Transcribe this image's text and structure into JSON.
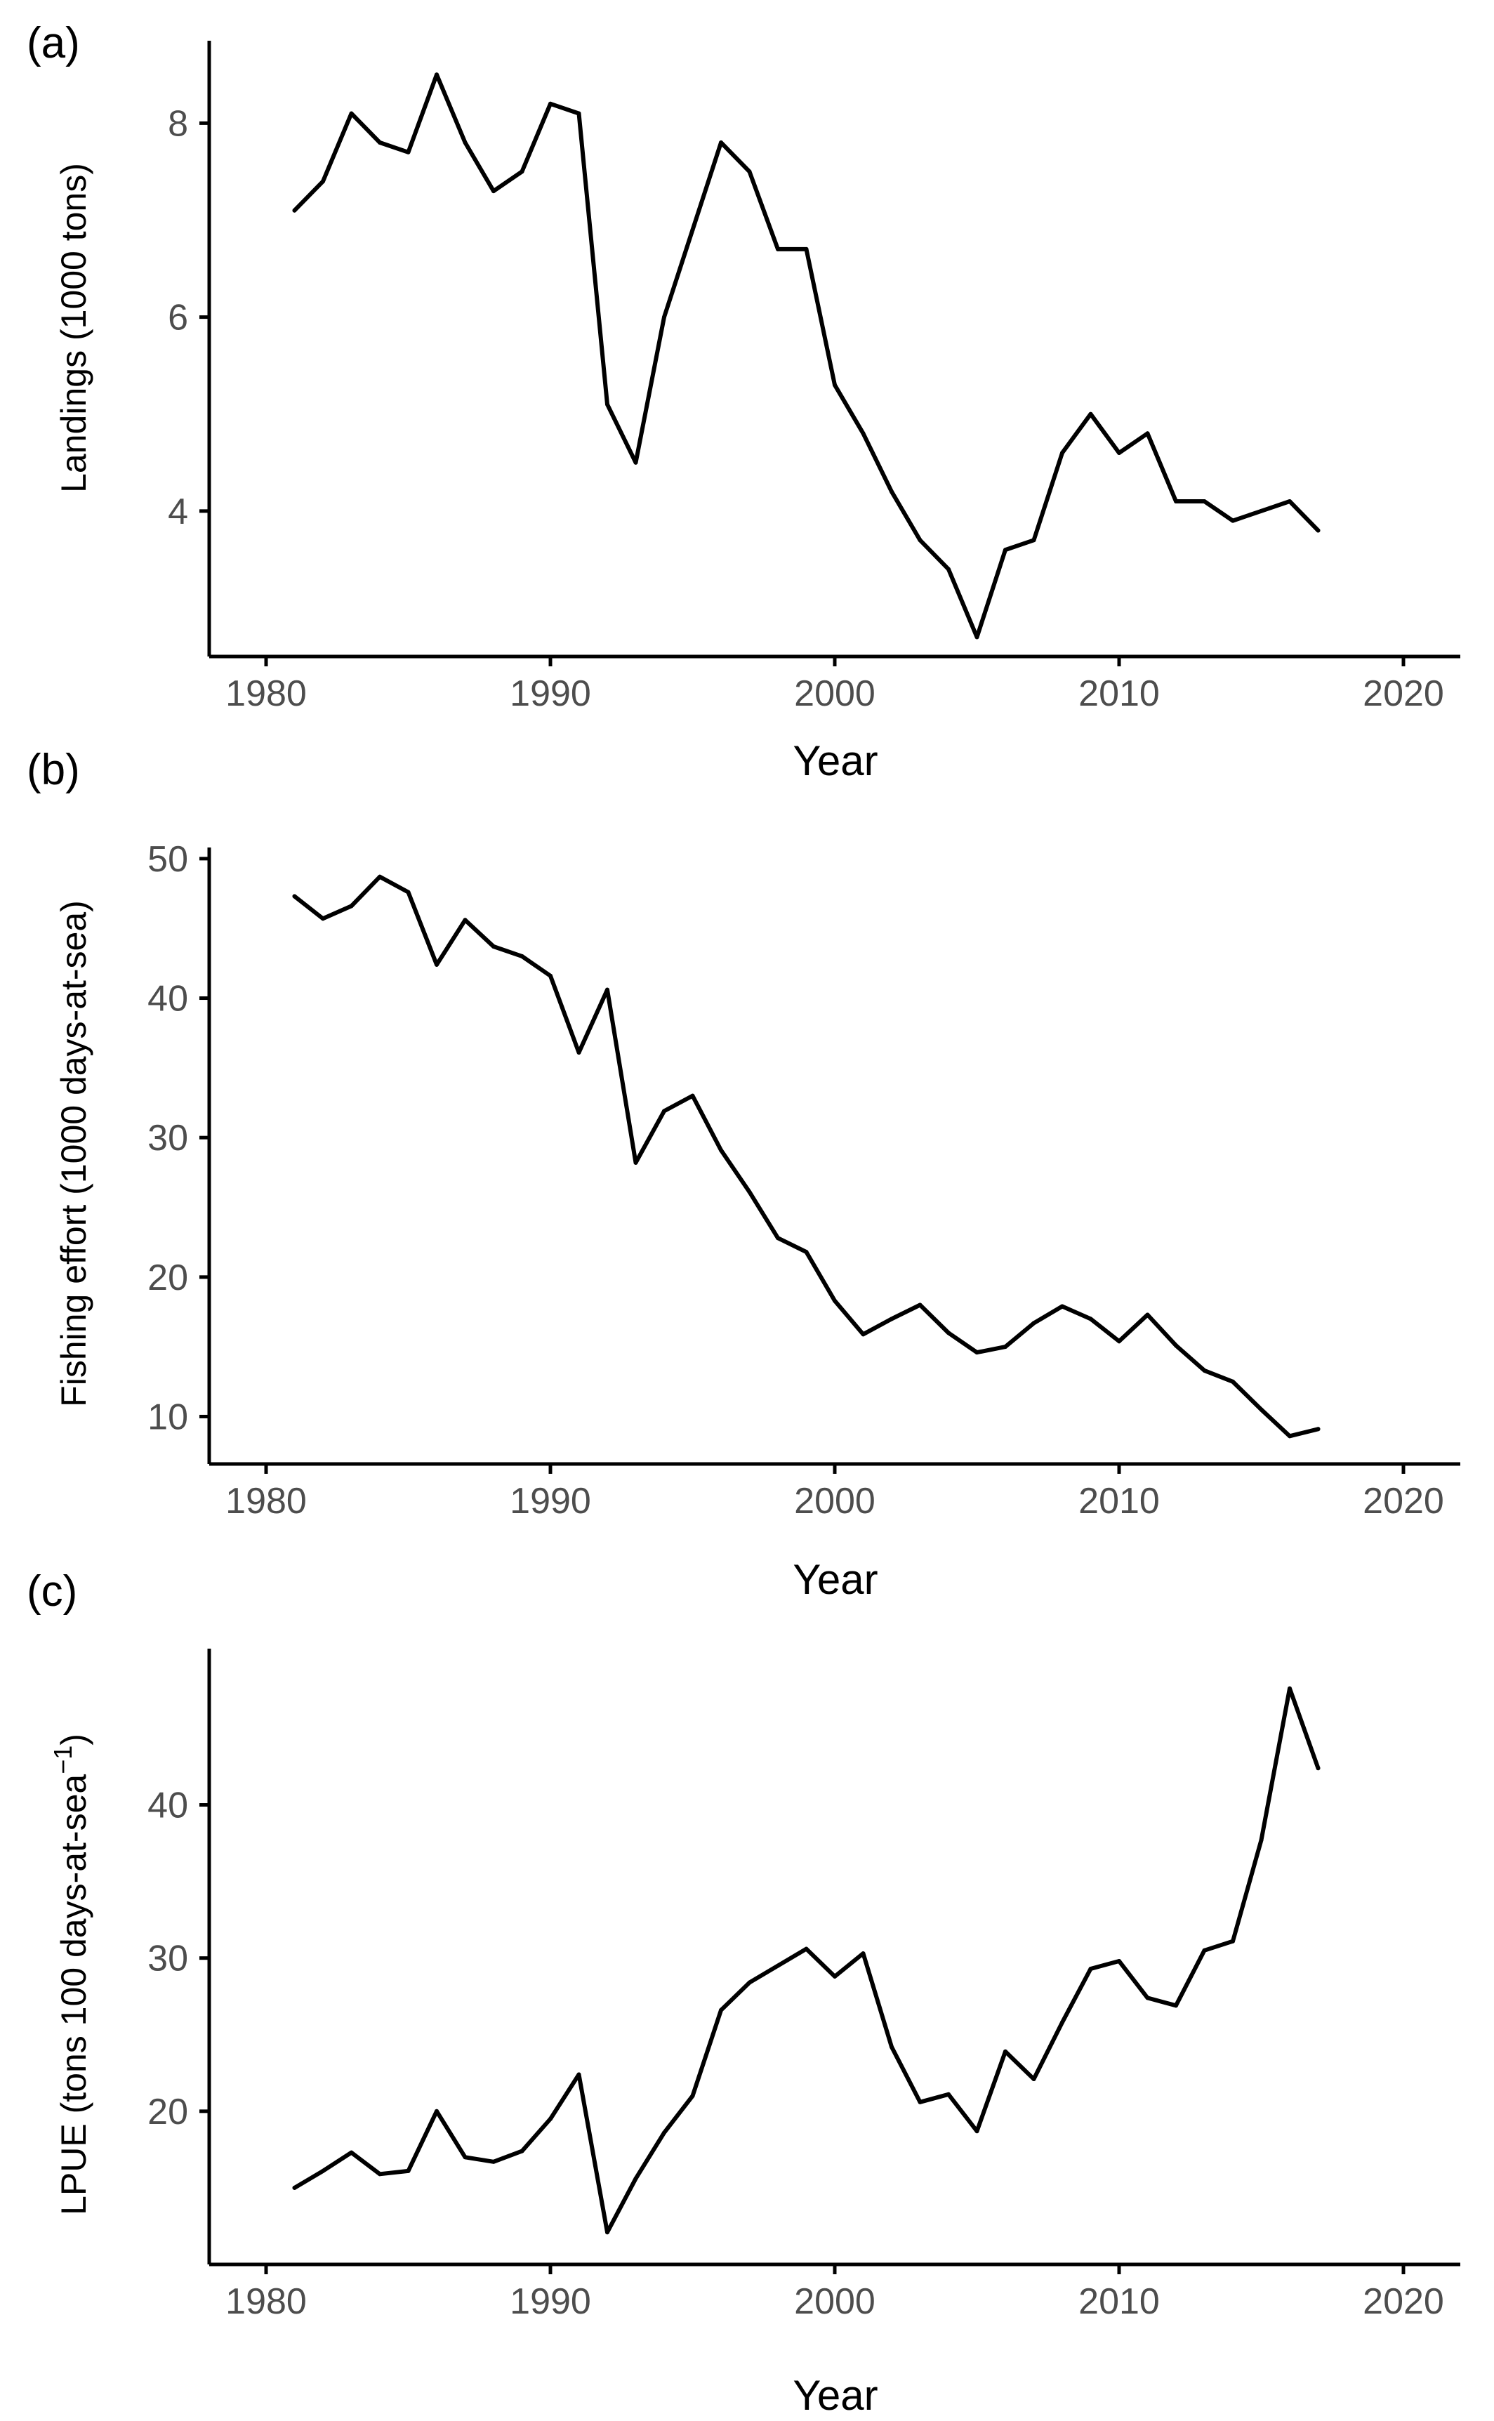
{
  "figure": {
    "panels": [
      {
        "label": "(a)",
        "ylabel": "Landings (1000  tons)",
        "xlabel": "Year"
      },
      {
        "label": "(b)",
        "ylabel": "Fishing effort (1000  days-at-sea)",
        "xlabel": "Year"
      },
      {
        "label": "(c)",
        "ylabel_main": "LPUE  (tons 100 days-at-sea",
        "ylabel_sup": "−1",
        "ylabel_close": ")",
        "xlabel": "Year"
      }
    ]
  },
  "chart_data": [
    {
      "type": "line",
      "title": "(a)",
      "xlabel": "Year",
      "ylabel": "Landings (1000  tons)",
      "xlim": [
        1978,
        2022
      ],
      "ylim": [
        2.5,
        8.85
      ],
      "xticks": [
        1980,
        1990,
        2000,
        2010,
        2020
      ],
      "yticks": [
        4,
        6,
        8
      ],
      "x": [
        1981,
        1982,
        1983,
        1984,
        1985,
        1986,
        1987,
        1988,
        1989,
        1990,
        1991,
        1992,
        1993,
        1994,
        1995,
        1996,
        1997,
        1998,
        1999,
        2000,
        2001,
        2002,
        2003,
        2004,
        2005,
        2006,
        2007,
        2008,
        2009,
        2010,
        2011,
        2012,
        2013,
        2014,
        2015,
        2016,
        2017
      ],
      "values": [
        7.1,
        7.4,
        8.1,
        7.8,
        7.7,
        8.5,
        7.8,
        7.3,
        7.5,
        8.2,
        8.1,
        5.1,
        4.5,
        6.0,
        6.9,
        7.8,
        7.5,
        6.7,
        6.7,
        5.3,
        4.8,
        4.2,
        3.7,
        3.4,
        2.7,
        3.6,
        3.7,
        4.6,
        5.0,
        4.6,
        4.8,
        4.1,
        4.1,
        3.9,
        4.0,
        4.1,
        3.8
      ]
    },
    {
      "type": "line",
      "title": "(b)",
      "xlabel": "Year",
      "ylabel": "Fishing effort (1000  days-at-sea)",
      "xlim": [
        1978,
        2022
      ],
      "ylim": [
        6.6,
        50.8
      ],
      "xticks": [
        1980,
        1990,
        2000,
        2010,
        2020
      ],
      "yticks": [
        10,
        20,
        30,
        40,
        50
      ],
      "x": [
        1981,
        1982,
        1983,
        1984,
        1985,
        1986,
        1987,
        1988,
        1989,
        1990,
        1991,
        1992,
        1993,
        1994,
        1995,
        1996,
        1997,
        1998,
        1999,
        2000,
        2001,
        2002,
        2003,
        2004,
        2005,
        2006,
        2007,
        2008,
        2009,
        2010,
        2011,
        2012,
        2013,
        2014,
        2015,
        2016,
        2017
      ],
      "values": [
        47.3,
        45.7,
        46.6,
        48.7,
        47.6,
        42.4,
        45.6,
        43.7,
        43.0,
        41.6,
        36.1,
        40.6,
        28.2,
        31.9,
        33.0,
        29.1,
        26.1,
        22.8,
        21.8,
        18.3,
        15.9,
        17.0,
        18.0,
        16.0,
        14.6,
        15.0,
        16.7,
        17.9,
        17.0,
        15.4,
        17.3,
        15.1,
        13.3,
        12.5,
        10.5,
        8.6,
        9.1
      ]
    },
    {
      "type": "line",
      "title": "(c)",
      "xlabel": "Year",
      "ylabel": "LPUE  (tons 100 days-at-sea−1)",
      "xlim": [
        1978,
        2022
      ],
      "ylim": [
        10.0,
        50.2
      ],
      "xticks": [
        1980,
        1990,
        2000,
        2010,
        2020
      ],
      "yticks": [
        20,
        30,
        40
      ],
      "x": [
        1981,
        1982,
        1983,
        1984,
        1985,
        1986,
        1987,
        1988,
        1989,
        1990,
        1991,
        1992,
        1993,
        1994,
        1995,
        1996,
        1997,
        1998,
        1999,
        2000,
        2001,
        2002,
        2003,
        2004,
        2005,
        2006,
        2007,
        2008,
        2009,
        2010,
        2011,
        2012,
        2013,
        2014,
        2015,
        2016,
        2017
      ],
      "values": [
        15.0,
        16.1,
        17.3,
        15.9,
        16.1,
        20.0,
        17.0,
        16.7,
        17.4,
        19.5,
        22.4,
        12.1,
        15.6,
        18.6,
        21.0,
        26.6,
        28.4,
        29.5,
        30.6,
        28.8,
        30.3,
        24.2,
        20.6,
        21.1,
        18.7,
        23.9,
        22.1,
        25.8,
        29.3,
        29.8,
        27.4,
        26.9,
        30.5,
        31.1,
        37.7,
        47.6,
        42.4
      ]
    }
  ]
}
